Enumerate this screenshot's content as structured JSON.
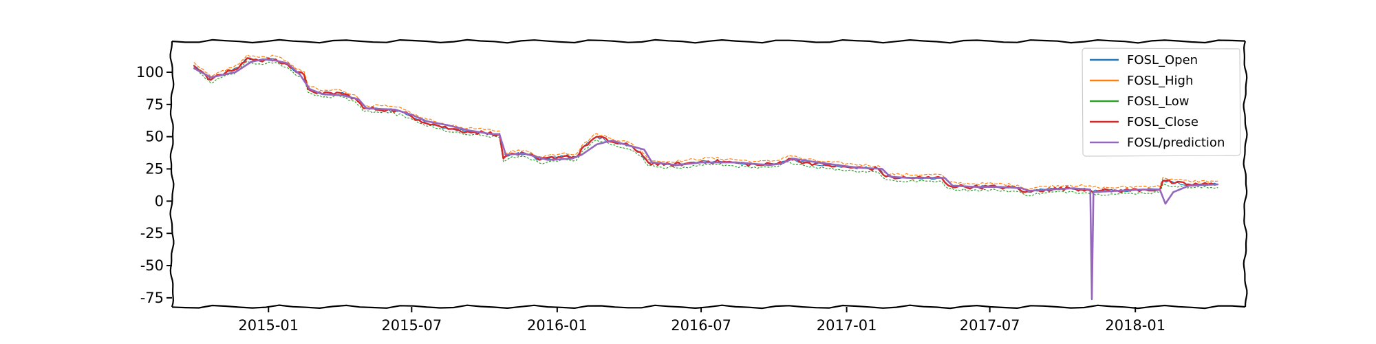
{
  "chart_data": {
    "type": "line",
    "xlim": [
      "2014-09-01",
      "2018-05-20"
    ],
    "ylim": [
      -82,
      124
    ],
    "xticks": [
      "2015-01",
      "2015-07",
      "2016-01",
      "2016-07",
      "2017-01",
      "2017-07",
      "2018-01"
    ],
    "yticks": [
      100,
      75,
      50,
      25,
      0,
      -25,
      -50,
      -75
    ],
    "legend_position": "top-right",
    "grid": false,
    "series": [
      {
        "name": "FOSL_Open",
        "color": "#1f77b4",
        "lw": 1.2,
        "dash": "none",
        "noise": 1.2,
        "points": []
      },
      {
        "name": "FOSL_High",
        "color": "#ff7f0e",
        "lw": 1.2,
        "dash": "4 3",
        "offset": 2.5,
        "noise": 1.0,
        "points": []
      },
      {
        "name": "FOSL_Low",
        "color": "#2ca02c",
        "lw": 1.2,
        "dash": "2 3",
        "offset": -2.5,
        "noise": 1.0,
        "points": []
      },
      {
        "name": "FOSL_Close",
        "color": "#d62728",
        "lw": 2.4,
        "dash": "none",
        "noise": 1.5,
        "points": []
      },
      {
        "name": "FOSL/prediction",
        "color": "#9467bd",
        "lw": 2.6,
        "dash": "none",
        "noise": 0,
        "points": []
      }
    ],
    "close_points": [
      [
        "2014-09-29",
        105
      ],
      [
        "2014-10-10",
        100
      ],
      [
        "2014-10-20",
        94
      ],
      [
        "2014-11-01",
        98
      ],
      [
        "2014-11-15",
        101
      ],
      [
        "2014-11-25",
        104
      ],
      [
        "2014-12-05",
        111
      ],
      [
        "2014-12-20",
        109
      ],
      [
        "2015-01-10",
        110
      ],
      [
        "2015-01-25",
        106
      ],
      [
        "2015-02-05",
        100
      ],
      [
        "2015-02-15",
        98
      ],
      [
        "2015-02-20",
        87
      ],
      [
        "2015-03-10",
        83
      ],
      [
        "2015-04-01",
        84
      ],
      [
        "2015-04-20",
        80
      ],
      [
        "2015-05-01",
        72
      ],
      [
        "2015-06-01",
        71
      ],
      [
        "2015-06-20",
        69
      ],
      [
        "2015-07-10",
        63
      ],
      [
        "2015-08-01",
        59
      ],
      [
        "2015-08-20",
        56
      ],
      [
        "2015-09-10",
        54
      ],
      [
        "2015-10-01",
        53
      ],
      [
        "2015-10-20",
        52
      ],
      [
        "2015-10-25",
        33
      ],
      [
        "2015-11-05",
        37
      ],
      [
        "2015-11-25",
        36
      ],
      [
        "2015-12-10",
        32
      ],
      [
        "2016-01-10",
        35
      ],
      [
        "2016-01-25",
        34
      ],
      [
        "2016-02-05",
        43
      ],
      [
        "2016-02-20",
        50
      ],
      [
        "2016-03-10",
        46
      ],
      [
        "2016-04-01",
        43
      ],
      [
        "2016-04-15",
        38
      ],
      [
        "2016-04-25",
        30
      ],
      [
        "2016-05-15",
        28
      ],
      [
        "2016-06-10",
        29
      ],
      [
        "2016-07-10",
        31
      ],
      [
        "2016-08-10",
        30
      ],
      [
        "2016-09-10",
        28
      ],
      [
        "2016-10-05",
        29
      ],
      [
        "2016-10-20",
        33
      ],
      [
        "2016-11-10",
        30
      ],
      [
        "2016-12-05",
        28
      ],
      [
        "2017-01-10",
        26
      ],
      [
        "2017-02-10",
        25
      ],
      [
        "2017-02-20",
        19
      ],
      [
        "2017-03-10",
        18
      ],
      [
        "2017-04-10",
        18
      ],
      [
        "2017-05-01",
        18
      ],
      [
        "2017-05-10",
        12
      ],
      [
        "2017-06-10",
        11
      ],
      [
        "2017-07-10",
        11
      ],
      [
        "2017-08-05",
        10
      ],
      [
        "2017-08-15",
        7
      ],
      [
        "2017-09-10",
        9
      ],
      [
        "2017-10-10",
        10
      ],
      [
        "2017-11-01",
        9
      ],
      [
        "2017-11-15",
        8
      ],
      [
        "2017-12-10",
        8
      ],
      [
        "2018-01-10",
        9
      ],
      [
        "2018-02-01",
        9
      ],
      [
        "2018-02-05",
        16
      ],
      [
        "2018-02-20",
        14
      ],
      [
        "2018-03-10",
        13
      ],
      [
        "2018-04-15",
        13
      ]
    ],
    "prediction_points": [
      [
        "2014-09-29",
        103
      ],
      [
        "2014-10-20",
        96
      ],
      [
        "2014-11-20",
        100
      ],
      [
        "2014-12-10",
        108
      ],
      [
        "2014-12-25",
        110
      ],
      [
        "2015-01-10",
        109
      ],
      [
        "2015-01-25",
        107
      ],
      [
        "2015-02-10",
        98
      ],
      [
        "2015-02-22",
        87
      ],
      [
        "2015-03-10",
        83
      ],
      [
        "2015-04-05",
        82
      ],
      [
        "2015-04-25",
        79
      ],
      [
        "2015-05-05",
        72
      ],
      [
        "2015-06-10",
        71
      ],
      [
        "2015-07-01",
        67
      ],
      [
        "2015-07-20",
        62
      ],
      [
        "2015-08-15",
        59
      ],
      [
        "2015-09-10",
        55
      ],
      [
        "2015-10-10",
        52
      ],
      [
        "2015-10-20",
        52
      ],
      [
        "2015-10-28",
        36
      ],
      [
        "2015-11-20",
        37
      ],
      [
        "2015-12-20",
        32
      ],
      [
        "2016-01-20",
        33
      ],
      [
        "2016-02-01",
        36
      ],
      [
        "2016-02-20",
        44
      ],
      [
        "2016-03-10",
        47
      ],
      [
        "2016-04-01",
        43
      ],
      [
        "2016-04-20",
        40
      ],
      [
        "2016-04-30",
        30
      ],
      [
        "2016-06-01",
        28
      ],
      [
        "2016-07-01",
        30
      ],
      [
        "2016-08-15",
        30
      ],
      [
        "2016-09-25",
        28
      ],
      [
        "2016-10-10",
        29
      ],
      [
        "2016-10-25",
        33
      ],
      [
        "2016-11-15",
        31
      ],
      [
        "2016-12-20",
        28
      ],
      [
        "2017-01-15",
        26
      ],
      [
        "2017-02-15",
        25
      ],
      [
        "2017-02-25",
        19
      ],
      [
        "2017-03-20",
        18
      ],
      [
        "2017-04-15",
        18
      ],
      [
        "2017-05-05",
        18
      ],
      [
        "2017-05-15",
        12
      ],
      [
        "2017-06-15",
        11
      ],
      [
        "2017-07-15",
        11
      ],
      [
        "2017-08-10",
        10
      ],
      [
        "2017-08-20",
        8
      ],
      [
        "2017-09-15",
        9
      ],
      [
        "2017-10-15",
        10
      ],
      [
        "2017-11-05",
        9
      ],
      [
        "2017-11-07",
        -76
      ],
      [
        "2017-11-09",
        7
      ],
      [
        "2017-12-10",
        8
      ],
      [
        "2018-01-10",
        9
      ],
      [
        "2018-02-01",
        9
      ],
      [
        "2018-02-08",
        -2
      ],
      [
        "2018-02-18",
        7
      ],
      [
        "2018-03-10",
        12
      ],
      [
        "2018-04-15",
        13
      ]
    ]
  }
}
